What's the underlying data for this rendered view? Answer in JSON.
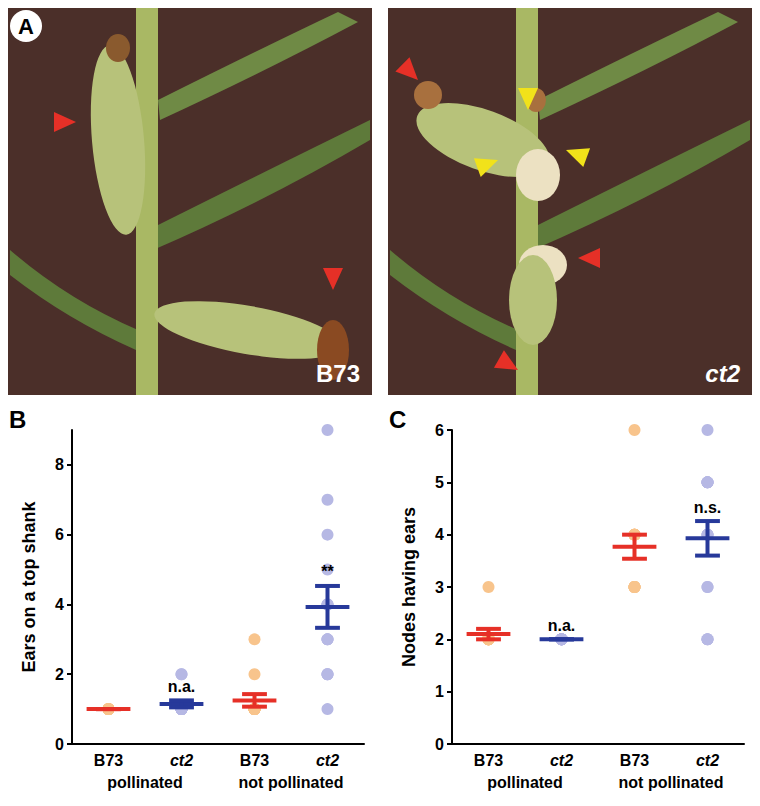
{
  "panel_a": {
    "label": "A",
    "images": [
      "B73",
      "ct2"
    ]
  },
  "chart_data": [
    {
      "type": "scatter",
      "panel": "B",
      "ylabel": "Ears on a top shank",
      "categories": [
        "B73",
        "ct2",
        "B73",
        "ct2"
      ],
      "groups": [
        "pollinated",
        "not pollinated"
      ],
      "ylim": [
        0,
        9
      ],
      "yticks": [
        0,
        2,
        4,
        6,
        8
      ],
      "grid": false,
      "points": [
        [
          1,
          1,
          1,
          1,
          1,
          1,
          1,
          1,
          1,
          1,
          1,
          1
        ],
        [
          1,
          1,
          1,
          1,
          1,
          1,
          1,
          1,
          1,
          1,
          1,
          2,
          2
        ],
        [
          3,
          2,
          1,
          1,
          1,
          1,
          1,
          1,
          1,
          1,
          1,
          1
        ],
        [
          9,
          7,
          6,
          5,
          4,
          4,
          4,
          3,
          3,
          3,
          2,
          2,
          2,
          1
        ]
      ],
      "mean": [
        1.0,
        1.15,
        1.25,
        3.93
      ],
      "sem": [
        0,
        0.1,
        0.18,
        0.6
      ],
      "colors": [
        "#f8c48c",
        "#b6b8e4",
        "#f8c48c",
        "#b6b8e4"
      ],
      "error_bar_colors": [
        "#e63027",
        "#27399a",
        "#e63027",
        "#27399a"
      ],
      "annotations": [
        null,
        "n.a.",
        null,
        "**"
      ]
    },
    {
      "type": "scatter",
      "panel": "C",
      "ylabel": "Nodes having ears",
      "categories": [
        "B73",
        "ct2",
        "B73",
        "ct2"
      ],
      "groups": [
        "pollinated",
        "not pollinated"
      ],
      "ylim": [
        0,
        6
      ],
      "yticks": [
        0,
        1,
        2,
        3,
        4,
        5,
        6
      ],
      "grid": false,
      "points": [
        [
          3,
          2,
          2,
          2,
          2,
          2,
          2,
          2,
          2,
          2
        ],
        [
          2,
          2,
          2,
          2,
          2,
          2,
          2,
          2,
          2,
          2,
          2
        ],
        [
          6,
          4,
          4,
          4,
          4,
          4,
          4,
          4,
          3,
          3,
          3,
          3,
          3
        ],
        [
          6,
          5,
          5,
          5,
          5,
          5,
          4,
          4,
          4,
          3,
          3,
          2,
          2,
          2
        ]
      ],
      "mean": [
        2.1,
        2.0,
        3.77,
        3.93
      ],
      "sem": [
        0.1,
        0,
        0.23,
        0.33
      ],
      "colors": [
        "#f8c48c",
        "#b6b8e4",
        "#f8c48c",
        "#b6b8e4"
      ],
      "error_bar_colors": [
        "#e63027",
        "#27399a",
        "#e63027",
        "#27399a"
      ],
      "annotations": [
        null,
        "n.a.",
        null,
        "n.s."
      ]
    }
  ]
}
